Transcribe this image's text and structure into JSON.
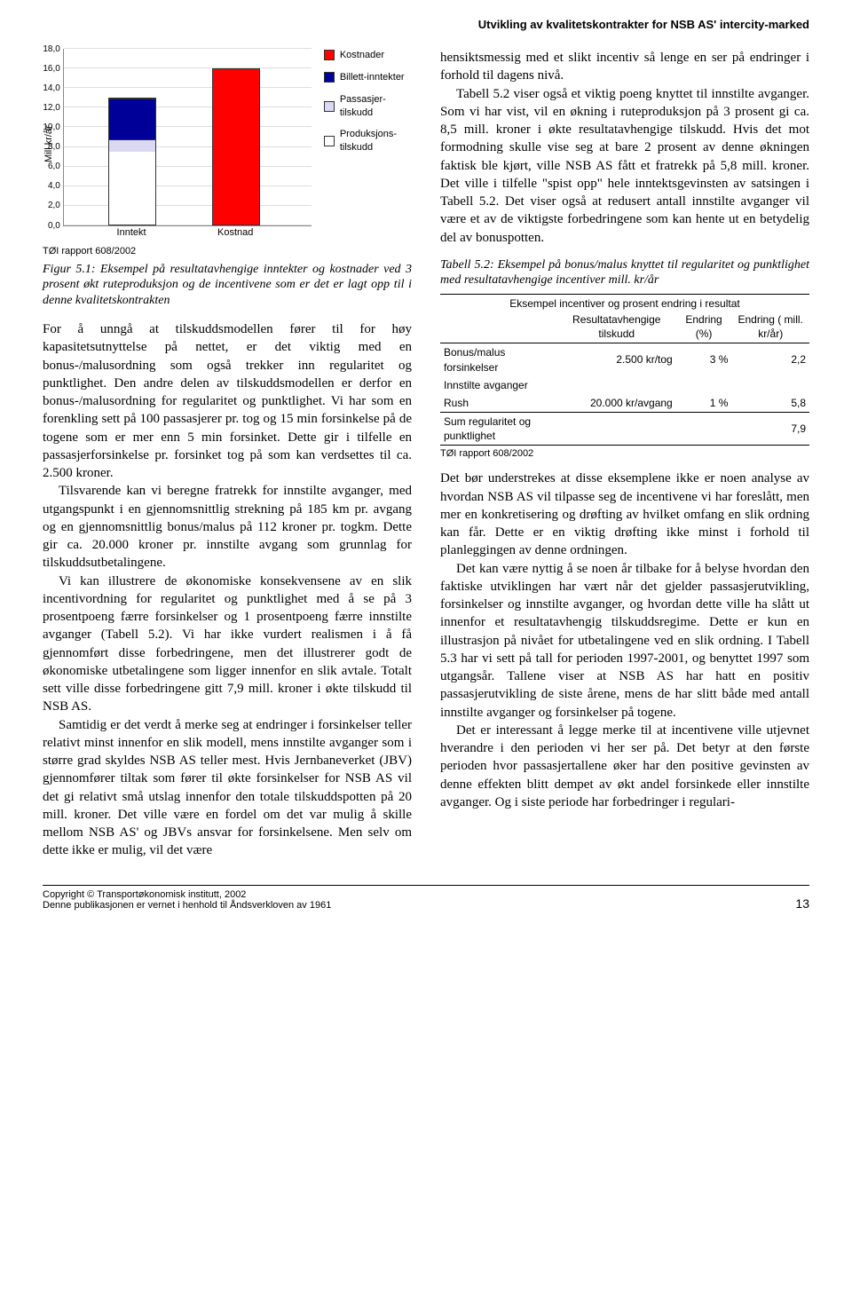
{
  "running_head": "Utvikling av kvalitetskontrakter for NSB AS' intercity-marked",
  "chart": {
    "type": "stacked-bar",
    "y_axis_label": "Mill kr/år",
    "ymax": 18,
    "ytick_step": 2,
    "yticks": [
      "0,0",
      "2,0",
      "4,0",
      "6,0",
      "8,0",
      "10,0",
      "12,0",
      "14,0",
      "16,0",
      "18,0"
    ],
    "categories": [
      "Inntekt",
      "Kostnad"
    ],
    "legend": [
      {
        "label": "Kostnader",
        "color": "#ff0000"
      },
      {
        "label": "Billett-inntekter",
        "color": "#000099"
      },
      {
        "label": "Passasjer-tilskudd",
        "color": "#d9d9f3"
      },
      {
        "label": "Produksjons-tilskudd",
        "color": "#ffffff"
      }
    ],
    "bars": [
      {
        "x_frac": 0.18,
        "segments": [
          {
            "value": 7.5,
            "color": "#ffffff"
          },
          {
            "value": 1.3,
            "color": "#d9d9f3"
          },
          {
            "value": 4.2,
            "color": "#000099"
          }
        ]
      },
      {
        "x_frac": 0.6,
        "segments": [
          {
            "value": 16.0,
            "color": "#ff0000"
          }
        ]
      }
    ],
    "source": "TØI rapport 608/2002"
  },
  "fig_caption": "Figur 5.1: Eksempel på resultatavhengige inntekter og kostnader ved 3 prosent økt ruteproduksjon og de incentivene som er det er lagt opp til i denne kvalitetskontrakten",
  "left_paras": [
    "For å unngå at tilskuddsmodellen fører til for høy kapasitetsutnyttelse på nettet, er det viktig med en bonus-/malusordning som også trekker inn regularitet og punktlighet. Den andre delen av tilskuddsmodellen er derfor en bonus-/malusordning for regularitet og punktlighet. Vi har som en forenkling sett på 100 passasjerer pr. tog og 15 min forsinkelse på de togene som er mer enn 5 min forsinket. Dette gir i tilfelle en passasjerforsinkelse pr. forsinket tog på som kan verdsettes til ca. 2.500 kroner.",
    "Tilsvarende kan vi beregne fratrekk for innstilte avganger, med utgangspunkt i en gjennomsnittlig strekning på 185 km pr. avgang og en gjennomsnittlig bonus/malus på 112 kroner pr. togkm. Dette gir ca. 20.000 kroner pr. innstilte avgang som grunnlag for tilskuddsutbetalingene.",
    "Vi kan illustrere de økonomiske konsekvensene av en slik incentivordning for regularitet og punktlighet med å se på 3 prosentpoeng færre forsinkelser og 1 prosentpoeng færre innstilte avganger (Tabell 5.2). Vi har ikke vurdert realismen i å få gjennomført disse forbedringene, men det illustrerer godt de økonomiske utbetalingene som ligger innenfor en slik avtale. Totalt sett ville disse forbedringene gitt 7,9 mill. kroner i økte tilskudd til NSB AS.",
    "Samtidig er det verdt å merke seg at endringer i forsinkelser teller relativt minst innenfor en slik modell, mens innstilte avganger som i større grad skyldes NSB AS teller mest. Hvis Jernbaneverket (JBV) gjennomfører tiltak som fører til økte forsinkelser for NSB AS vil det gi relativt små utslag innenfor den totale tilskuddspotten på 20 mill. kroner. Det ville være en fordel om det var mulig å skille mellom NSB AS' og JBVs ansvar for forsinkelsene. Men selv om dette ikke er mulig, vil det være"
  ],
  "right_paras_top": [
    "hensiktsmessig med et slikt incentiv så lenge en ser på endringer i forhold til dagens nivå.",
    "Tabell 5.2 viser også et viktig poeng knyttet til innstilte avganger. Som vi har vist, vil en økning i ruteproduksjon på 3 prosent gi ca. 8,5 mill. kroner i økte resultatavhengige tilskudd. Hvis det mot formodning skulle vise seg at bare 2 prosent av denne økningen faktisk ble kjørt, ville NSB AS fått et fratrekk på 5,8 mill. kroner. Det ville i tilfelle \"spist opp\" hele inntektsgevinsten av satsingen i Tabell 5.2. Det viser også at redusert antall innstilte avganger vil være et av de viktigste forbedringene som kan hente ut en betydelig del av bonuspotten."
  ],
  "table": {
    "caption": "Tabell 5.2: Eksempel på bonus/malus knyttet til regularitet og punktlighet med resultatavhengige incentiver mill. kr/år",
    "superheader": "Eksempel incentiver og prosent endring i resultat",
    "headers": [
      "",
      "Resultatavhengige tilskudd",
      "Endring (%)",
      "Endring ( mill. kr/år)"
    ],
    "rows": [
      [
        "Bonus/malus forsinkelser",
        "2.500 kr/tog",
        "3 %",
        "2,2"
      ],
      [
        "Innstilte avganger",
        "",
        "",
        ""
      ],
      [
        "Rush",
        "20.000 kr/avgang",
        "1 %",
        "5,8"
      ]
    ],
    "sum_row": [
      "Sum regularitet og punktlighet",
      "",
      "",
      "7,9"
    ],
    "source": "TØI rapport 608/2002"
  },
  "right_paras_bottom": [
    "Det bør understrekes at disse eksemplene ikke er noen analyse av hvordan NSB AS vil tilpasse seg de incentivene vi har foreslått, men mer en konkretisering og drøfting av hvilket omfang en slik ordning kan får. Dette er en viktig drøfting ikke minst i forhold til planleggingen av denne ordningen.",
    "Det kan være nyttig å se noen år tilbake for å belyse hvordan den faktiske utviklingen har vært når det gjelder passasjerutvikling, forsinkelser og innstilte avganger, og hvordan dette ville ha slått ut innenfor et resultatavhengig tilskuddsregime. Dette er kun en illustrasjon på nivået for utbetalingene ved en slik ordning. I Tabell 5.3 har vi sett på tall for perioden 1997-2001, og benyttet 1997 som utgangsår. Tallene viser at NSB AS har hatt en positiv passasjerutvikling de siste årene, mens de har slitt både med antall innstilte avganger og forsinkelser på togene.",
    "Det er interessant å legge merke til at incentivene ville utjevnet hverandre i den perioden vi her ser på. Det betyr at den første perioden hvor passasjertallene øker har den positive gevinsten av denne effekten blitt dempet av økt andel forsinkede eller innstilte avganger. Og i siste periode har forbedringer i regulari-"
  ],
  "footer": {
    "left1": "Copyright © Transportøkonomisk institutt, 2002",
    "left2": "Denne publikasjonen er vernet i henhold til Åndsverkloven av 1961",
    "page": "13"
  }
}
